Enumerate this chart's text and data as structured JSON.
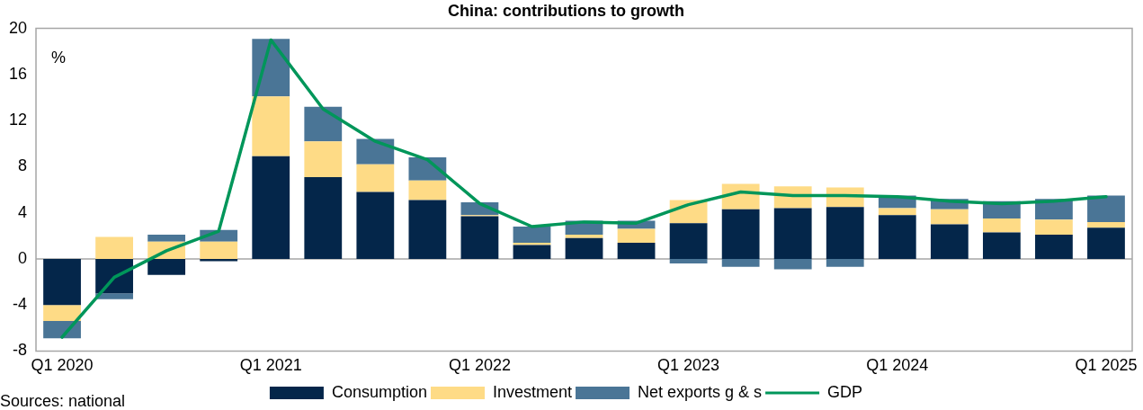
{
  "chart_data": {
    "type": "bar",
    "title": "China: contributions to growth",
    "stacked": true,
    "categories": [
      "Q1 2020",
      null,
      null,
      null,
      "Q1 2021",
      null,
      null,
      null,
      "Q1 2022",
      null,
      null,
      null,
      "Q1 2023",
      null,
      null,
      null,
      "Q1 2024",
      null,
      null,
      null,
      "Q1 2025"
    ],
    "series": [
      {
        "name": "Consumption",
        "color": "#04264a",
        "values": [
          -4.0,
          -3.0,
          -1.4,
          -0.2,
          8.9,
          7.1,
          5.8,
          5.1,
          3.7,
          1.2,
          1.8,
          1.4,
          3.1,
          4.3,
          4.4,
          4.5,
          3.8,
          3.0,
          2.3,
          2.1,
          2.7
        ]
      },
      {
        "name": "Investment",
        "color": "#fedb86",
        "values": [
          -1.4,
          1.9,
          1.5,
          1.5,
          5.2,
          3.1,
          2.4,
          1.7,
          0.1,
          0.2,
          0.3,
          1.2,
          2.0,
          2.2,
          1.9,
          1.7,
          0.6,
          1.3,
          1.2,
          1.3,
          0.5
        ]
      },
      {
        "name": "Net exports g & s",
        "color": "#4a7596",
        "values": [
          -1.5,
          -0.5,
          0.6,
          1.0,
          5.0,
          3.0,
          2.2,
          2.0,
          1.1,
          1.4,
          1.2,
          0.7,
          -0.4,
          -0.7,
          -0.9,
          -0.7,
          1.1,
          0.9,
          1.5,
          1.8,
          2.3
        ]
      },
      {
        "name": "GDP",
        "type": "line",
        "color": "#00965a",
        "values": [
          -6.8,
          -1.6,
          0.7,
          2.4,
          19.0,
          13.0,
          10.2,
          8.6,
          4.8,
          2.8,
          3.2,
          3.1,
          4.7,
          5.8,
          5.5,
          5.5,
          5.4,
          5.0,
          4.8,
          5.0,
          5.4
        ]
      }
    ],
    "ylim": [
      -8,
      20
    ],
    "yticks": [
      -8,
      -4,
      0,
      4,
      8,
      12,
      16,
      20
    ],
    "grid": false,
    "legend": "bottom",
    "marker": "none",
    "ref_lines": [
      {
        "axis": "y",
        "value": 0,
        "color": "#a6a6a6"
      }
    ],
    "annotations": [
      "%",
      "Sources: national"
    ]
  }
}
